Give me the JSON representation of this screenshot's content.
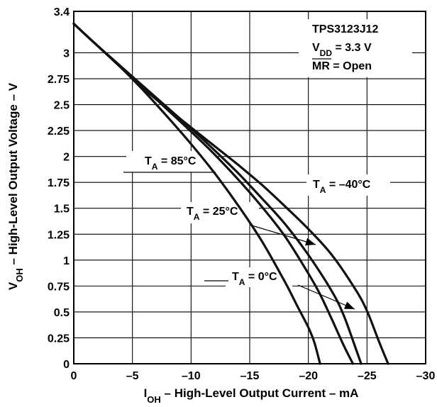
{
  "chart_data": {
    "type": "line",
    "xlabel": "I",
    "xlabel_sub": "OH",
    "xlabel_rest": " – High-Level Output Current – mA",
    "ylabel": "V",
    "ylabel_sub": "OH",
    "ylabel_rest": " – High-Level Output Voltage – V",
    "xlim": [
      0,
      -30
    ],
    "ylim": [
      0,
      3.4
    ],
    "x_ticks": [
      0,
      -5,
      -10,
      -15,
      -20,
      -25,
      -30
    ],
    "x_tick_labels": [
      "0",
      "–5",
      "–10",
      "–15",
      "–20",
      "–25",
      "–30"
    ],
    "y_ticks": [
      0,
      0.25,
      0.5,
      0.75,
      1,
      1.25,
      1.5,
      1.75,
      2,
      2.25,
      2.5,
      2.75,
      3,
      3.4
    ],
    "y_tick_labels": [
      "0",
      "0.25",
      "0.5",
      "0.75",
      "1",
      "1.25",
      "1.5",
      "1.75",
      "2",
      "2.25",
      "2.5",
      "2.75",
      "3",
      "3.4"
    ],
    "grid": true,
    "legend_box": {
      "line1": "TPS3123J12",
      "line2_main": "V",
      "line2_sub": "DD",
      "line2_rest": " = 3.3 V",
      "line3_over": "MR",
      "line3_rest": " = Open"
    },
    "series": [
      {
        "name": "T_A = 85°C",
        "label_main": "T",
        "label_sub": "A",
        "label_rest": " = 85°C",
        "points": [
          [
            0,
            3.28
          ],
          [
            -2,
            3.07
          ],
          [
            -4,
            2.86
          ],
          [
            -6,
            2.63
          ],
          [
            -8,
            2.38
          ],
          [
            -10,
            2.12
          ],
          [
            -12,
            1.84
          ],
          [
            -14,
            1.53
          ],
          [
            -16,
            1.19
          ],
          [
            -18,
            0.79
          ],
          [
            -19,
            0.57
          ],
          [
            -20,
            0.35
          ],
          [
            -20.5,
            0.21
          ],
          [
            -21,
            0
          ]
        ]
      },
      {
        "name": "T_A = 0°C",
        "label_main": "T",
        "label_sub": "A",
        "label_rest": " = 0°C",
        "points": [
          [
            0,
            3.28
          ],
          [
            -2,
            3.07
          ],
          [
            -4,
            2.87
          ],
          [
            -6,
            2.66
          ],
          [
            -8,
            2.45
          ],
          [
            -10,
            2.24
          ],
          [
            -12,
            2.02
          ],
          [
            -14,
            1.78
          ],
          [
            -16,
            1.52
          ],
          [
            -18,
            1.23
          ],
          [
            -20,
            0.87
          ],
          [
            -21,
            0.67
          ],
          [
            -22,
            0.43
          ],
          [
            -23,
            0.18
          ],
          [
            -23.8,
            0
          ]
        ]
      },
      {
        "name": "T_A = 25°C",
        "label_main": "T",
        "label_sub": "A",
        "label_rest": " = 25°C",
        "points": [
          [
            0,
            3.28
          ],
          [
            -2,
            3.07
          ],
          [
            -4,
            2.87
          ],
          [
            -6,
            2.67
          ],
          [
            -8,
            2.47
          ],
          [
            -10,
            2.27
          ],
          [
            -12,
            2.06
          ],
          [
            -14,
            1.84
          ],
          [
            -16,
            1.6
          ],
          [
            -18,
            1.35
          ],
          [
            -20,
            1.05
          ],
          [
            -22,
            0.7
          ],
          [
            -23,
            0.47
          ],
          [
            -24,
            0.16
          ],
          [
            -24.5,
            0
          ]
        ]
      },
      {
        "name": "T_A = –40°C",
        "label_main": "T",
        "label_sub": "A",
        "label_rest": " = –40°C",
        "points": [
          [
            0,
            3.28
          ],
          [
            -2,
            3.07
          ],
          [
            -4,
            2.86
          ],
          [
            -6,
            2.65
          ],
          [
            -8,
            2.46
          ],
          [
            -10,
            2.28
          ],
          [
            -12,
            2.1
          ],
          [
            -14,
            1.92
          ],
          [
            -16,
            1.73
          ],
          [
            -18,
            1.52
          ],
          [
            -20,
            1.3
          ],
          [
            -22,
            1.05
          ],
          [
            -24,
            0.72
          ],
          [
            -25,
            0.51
          ],
          [
            -26,
            0.22
          ],
          [
            -26.8,
            0
          ]
        ]
      }
    ]
  }
}
